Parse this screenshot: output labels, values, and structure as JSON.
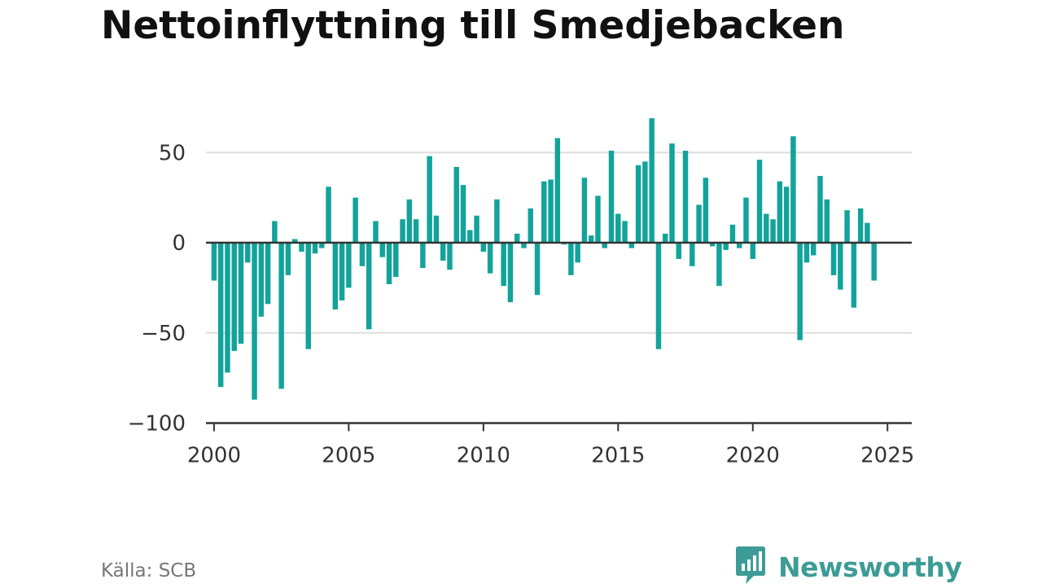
{
  "title": "Nettoinflyttning till Smedjebacken",
  "source": "Källa: SCB",
  "brand": {
    "name": "Newsworthy",
    "icon": "newsworthy-logo-icon",
    "color": "#3d9c95"
  },
  "colors": {
    "bar": "#12a39b",
    "zero_line": "#333333",
    "grid": "#dddddd"
  },
  "chart_data": {
    "type": "bar",
    "title": "Nettoinflyttning till Smedjebacken",
    "xlabel": "",
    "ylabel": "",
    "frequency": "quarterly",
    "start": "2000 Q1",
    "xlim": [
      1999.7,
      2025.9
    ],
    "ylim": [
      -100,
      70
    ],
    "y_ticks": [
      50,
      0,
      -50,
      -100
    ],
    "y_tick_labels": [
      "50",
      "0",
      "−50",
      "−100"
    ],
    "x_ticks": [
      2000,
      2005,
      2010,
      2015,
      2020,
      2025
    ],
    "x_tick_labels": [
      "2000",
      "2005",
      "2010",
      "2015",
      "2020",
      "2025"
    ],
    "grid": true,
    "values": [
      -21,
      -80,
      -72,
      -60,
      -56,
      -11,
      -87,
      -41,
      -34,
      12,
      -81,
      -18,
      2,
      -5,
      -59,
      -6,
      -3,
      31,
      -37,
      -32,
      -25,
      25,
      -13,
      -48,
      12,
      -8,
      -23,
      -19,
      13,
      24,
      13,
      -14,
      48,
      15,
      -10,
      -15,
      42,
      32,
      7,
      15,
      -5,
      -17,
      24,
      -24,
      -33,
      5,
      -3,
      19,
      -29,
      34,
      35,
      58,
      -1,
      -18,
      -11,
      36,
      4,
      26,
      -3,
      51,
      16,
      12,
      -3,
      43,
      45,
      69,
      -59,
      5,
      55,
      -9,
      51,
      -13,
      21,
      36,
      -2,
      -24,
      -4,
      10,
      -3,
      25,
      -9,
      46,
      16,
      13,
      34,
      31,
      59,
      -54,
      -11,
      -7,
      37,
      24,
      -18,
      -26,
      18,
      -36,
      19,
      11,
      -21
    ]
  }
}
